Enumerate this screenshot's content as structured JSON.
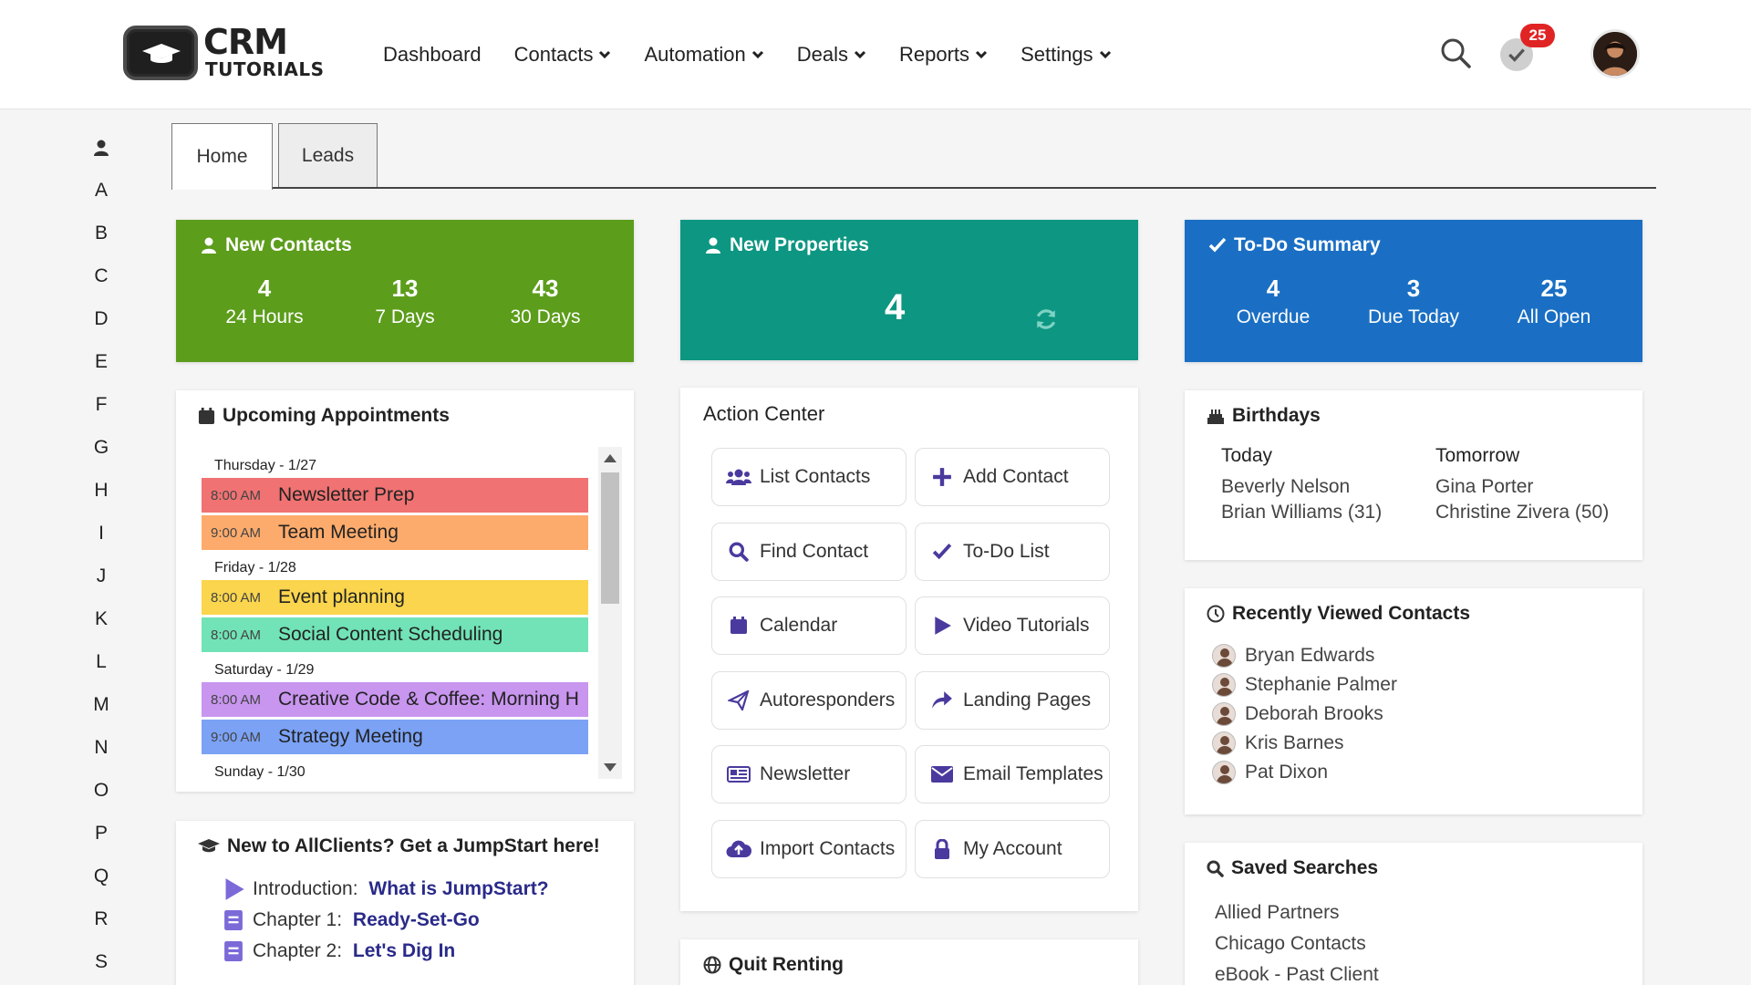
{
  "brand": {
    "line1": "CRM",
    "line2": "TUTORIALS"
  },
  "nav": {
    "items": [
      {
        "label": "Dashboard",
        "dropdown": false
      },
      {
        "label": "Contacts",
        "dropdown": true
      },
      {
        "label": "Automation",
        "dropdown": true
      },
      {
        "label": "Deals",
        "dropdown": true
      },
      {
        "label": "Reports",
        "dropdown": true
      },
      {
        "label": "Settings",
        "dropdown": true
      }
    ]
  },
  "header": {
    "todo_badge": "25"
  },
  "alphabet": [
    "A",
    "B",
    "C",
    "D",
    "E",
    "F",
    "G",
    "H",
    "I",
    "J",
    "K",
    "L",
    "M",
    "N",
    "O",
    "P",
    "Q",
    "R",
    "S"
  ],
  "tabs": [
    {
      "label": "Home"
    },
    {
      "label": "Leads"
    }
  ],
  "new_contacts": {
    "title": "New Contacts",
    "color": "#5c9d1b",
    "stats": [
      {
        "value": "4",
        "label": "24 Hours"
      },
      {
        "value": "13",
        "label": "7 Days"
      },
      {
        "value": "43",
        "label": "30 Days"
      }
    ]
  },
  "new_properties": {
    "title": "New Properties",
    "color": "#0d9682",
    "value": "4"
  },
  "todo_summary": {
    "title": "To-Do Summary",
    "color": "#1a6fc4",
    "stats": [
      {
        "value": "4",
        "label": "Overdue"
      },
      {
        "value": "3",
        "label": "Due Today"
      },
      {
        "value": "25",
        "label": "All Open"
      }
    ]
  },
  "appointments": {
    "title": "Upcoming Appointments",
    "days": [
      {
        "day": "Thursday - 1/27",
        "items": [
          {
            "time": "8:00 AM",
            "title": "Newsletter Prep",
            "color": "#f07272"
          },
          {
            "time": "9:00 AM",
            "title": "Team Meeting",
            "color": "#fdab6c"
          }
        ]
      },
      {
        "day": "Friday - 1/28",
        "items": [
          {
            "time": "8:00 AM",
            "title": "Event planning",
            "color": "#fad54d"
          },
          {
            "time": "8:00 AM",
            "title": "Social Content Scheduling",
            "color": "#71e3b6"
          }
        ]
      },
      {
        "day": "Saturday - 1/29",
        "items": [
          {
            "time": "8:00 AM",
            "title": "Creative Code & Coffee: Morning H",
            "color": "#c895ef"
          },
          {
            "time": "9:00 AM",
            "title": "Strategy Meeting",
            "color": "#7ba2f5"
          }
        ]
      },
      {
        "day": "Sunday - 1/30",
        "items": []
      }
    ]
  },
  "action_center": {
    "title": "Action Center",
    "buttons": [
      {
        "label": "List Contacts",
        "icon": "users-icon"
      },
      {
        "label": "Add Contact",
        "icon": "plus-icon"
      },
      {
        "label": "Find Contact",
        "icon": "search-icon"
      },
      {
        "label": "To-Do List",
        "icon": "check-icon"
      },
      {
        "label": "Calendar",
        "icon": "calendar-icon"
      },
      {
        "label": "Video Tutorials",
        "icon": "play-icon"
      },
      {
        "label": "Autoresponders",
        "icon": "paper-plane-icon"
      },
      {
        "label": "Landing Pages",
        "icon": "share-icon"
      },
      {
        "label": "Newsletter",
        "icon": "newspaper-icon"
      },
      {
        "label": "Email Templates",
        "icon": "envelope-icon"
      },
      {
        "label": "Import Contacts",
        "icon": "cloud-upload-icon"
      },
      {
        "label": "My Account",
        "icon": "lock-icon"
      }
    ]
  },
  "jumpstart": {
    "title": "New to AllClients? Get a JumpStart here!",
    "items": [
      {
        "prefix": "Introduction: ",
        "link": "What is JumpStart?",
        "icon": "play-icon"
      },
      {
        "prefix": "Chapter 1: ",
        "link": "Ready-Set-Go",
        "icon": "document-icon"
      },
      {
        "prefix": "Chapter 2: ",
        "link": "Let's Dig In",
        "icon": "document-icon"
      }
    ]
  },
  "quit_renting": {
    "title": "Quit Renting"
  },
  "birthdays": {
    "title": "Birthdays",
    "today_label": "Today",
    "tomorrow_label": "Tomorrow",
    "today": [
      "Beverly Nelson",
      "Brian Williams (31)"
    ],
    "tomorrow": [
      "Gina Porter",
      "Christine Zivera (50)"
    ]
  },
  "recently_viewed": {
    "title": "Recently Viewed Contacts",
    "contacts": [
      "Bryan Edwards",
      "Stephanie Palmer",
      "Deborah Brooks",
      "Kris Barnes",
      "Pat Dixon"
    ]
  },
  "saved_searches": {
    "title": "Saved Searches",
    "items": [
      "Allied Partners",
      "Chicago Contacts",
      "eBook - Past Client"
    ]
  }
}
